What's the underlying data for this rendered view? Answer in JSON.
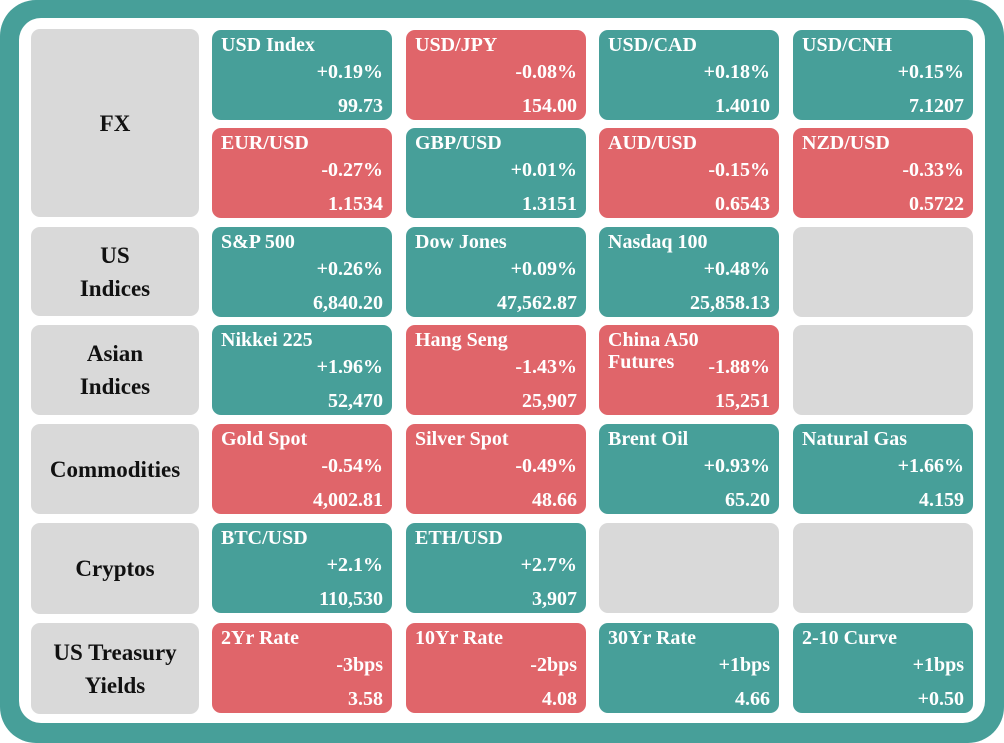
{
  "colors": {
    "frame": "#479f99",
    "up": "#479f99",
    "down": "#e0656a",
    "empty": "#d9d9d9"
  },
  "rows": [
    {
      "label": "FX",
      "tiles": [
        {
          "name": "USD Index",
          "change": "+0.19%",
          "value": "99.73",
          "dir": "up"
        },
        {
          "name": "USD/JPY",
          "change": "-0.08%",
          "value": "154.00",
          "dir": "down"
        },
        {
          "name": "USD/CAD",
          "change": "+0.18%",
          "value": "1.4010",
          "dir": "up"
        },
        {
          "name": "USD/CNH",
          "change": "+0.15%",
          "value": "7.1207",
          "dir": "up"
        },
        {
          "name": "EUR/USD",
          "change": "-0.27%",
          "value": "1.1534",
          "dir": "down"
        },
        {
          "name": "GBP/USD",
          "change": "+0.01%",
          "value": "1.3151",
          "dir": "up"
        },
        {
          "name": "AUD/USD",
          "change": "-0.15%",
          "value": "0.6543",
          "dir": "down"
        },
        {
          "name": "NZD/USD",
          "change": "-0.33%",
          "value": "0.5722",
          "dir": "down"
        }
      ]
    },
    {
      "label": "US\nIndices",
      "tiles": [
        {
          "name": "S&P 500",
          "change": "+0.26%",
          "value": "6,840.20",
          "dir": "up"
        },
        {
          "name": "Dow Jones",
          "change": "+0.09%",
          "value": "47,562.87",
          "dir": "up"
        },
        {
          "name": "Nasdaq 100",
          "change": "+0.48%",
          "value": "25,858.13",
          "dir": "up"
        },
        {
          "name": "",
          "change": "",
          "value": "",
          "dir": "empty"
        }
      ]
    },
    {
      "label": "Asian\nIndices",
      "tiles": [
        {
          "name": "Nikkei 225",
          "change": "+1.96%",
          "value": "52,470",
          "dir": "up"
        },
        {
          "name": "Hang Seng",
          "change": "-1.43%",
          "value": "25,907",
          "dir": "down"
        },
        {
          "name": "China A50\nFutures",
          "change": "-1.88%",
          "value": "15,251",
          "dir": "down"
        },
        {
          "name": "",
          "change": "",
          "value": "",
          "dir": "empty"
        }
      ]
    },
    {
      "label": "Commodities",
      "tiles": [
        {
          "name": "Gold Spot",
          "change": "-0.54%",
          "value": "4,002.81",
          "dir": "down"
        },
        {
          "name": "Silver Spot",
          "change": "-0.49%",
          "value": "48.66",
          "dir": "down"
        },
        {
          "name": "Brent Oil",
          "change": "+0.93%",
          "value": "65.20",
          "dir": "up"
        },
        {
          "name": "Natural Gas",
          "change": "+1.66%",
          "value": "4.159",
          "dir": "up"
        }
      ]
    },
    {
      "label": "Cryptos",
      "tiles": [
        {
          "name": "BTC/USD",
          "change": "+2.1%",
          "value": "110,530",
          "dir": "up"
        },
        {
          "name": "ETH/USD",
          "change": "+2.7%",
          "value": "3,907",
          "dir": "up"
        },
        {
          "name": "",
          "change": "",
          "value": "",
          "dir": "empty"
        },
        {
          "name": "",
          "change": "",
          "value": "",
          "dir": "empty"
        }
      ]
    },
    {
      "label": "US Treasury\nYields",
      "tiles": [
        {
          "name": "2Yr Rate",
          "change": "-3bps",
          "value": "3.58",
          "dir": "down"
        },
        {
          "name": "10Yr Rate",
          "change": "-2bps",
          "value": "4.08",
          "dir": "down"
        },
        {
          "name": "30Yr Rate",
          "change": "+1bps",
          "value": "4.66",
          "dir": "up"
        },
        {
          "name": "2-10 Curve",
          "change": "+1bps",
          "value": "+0.50",
          "dir": "up"
        }
      ]
    }
  ]
}
